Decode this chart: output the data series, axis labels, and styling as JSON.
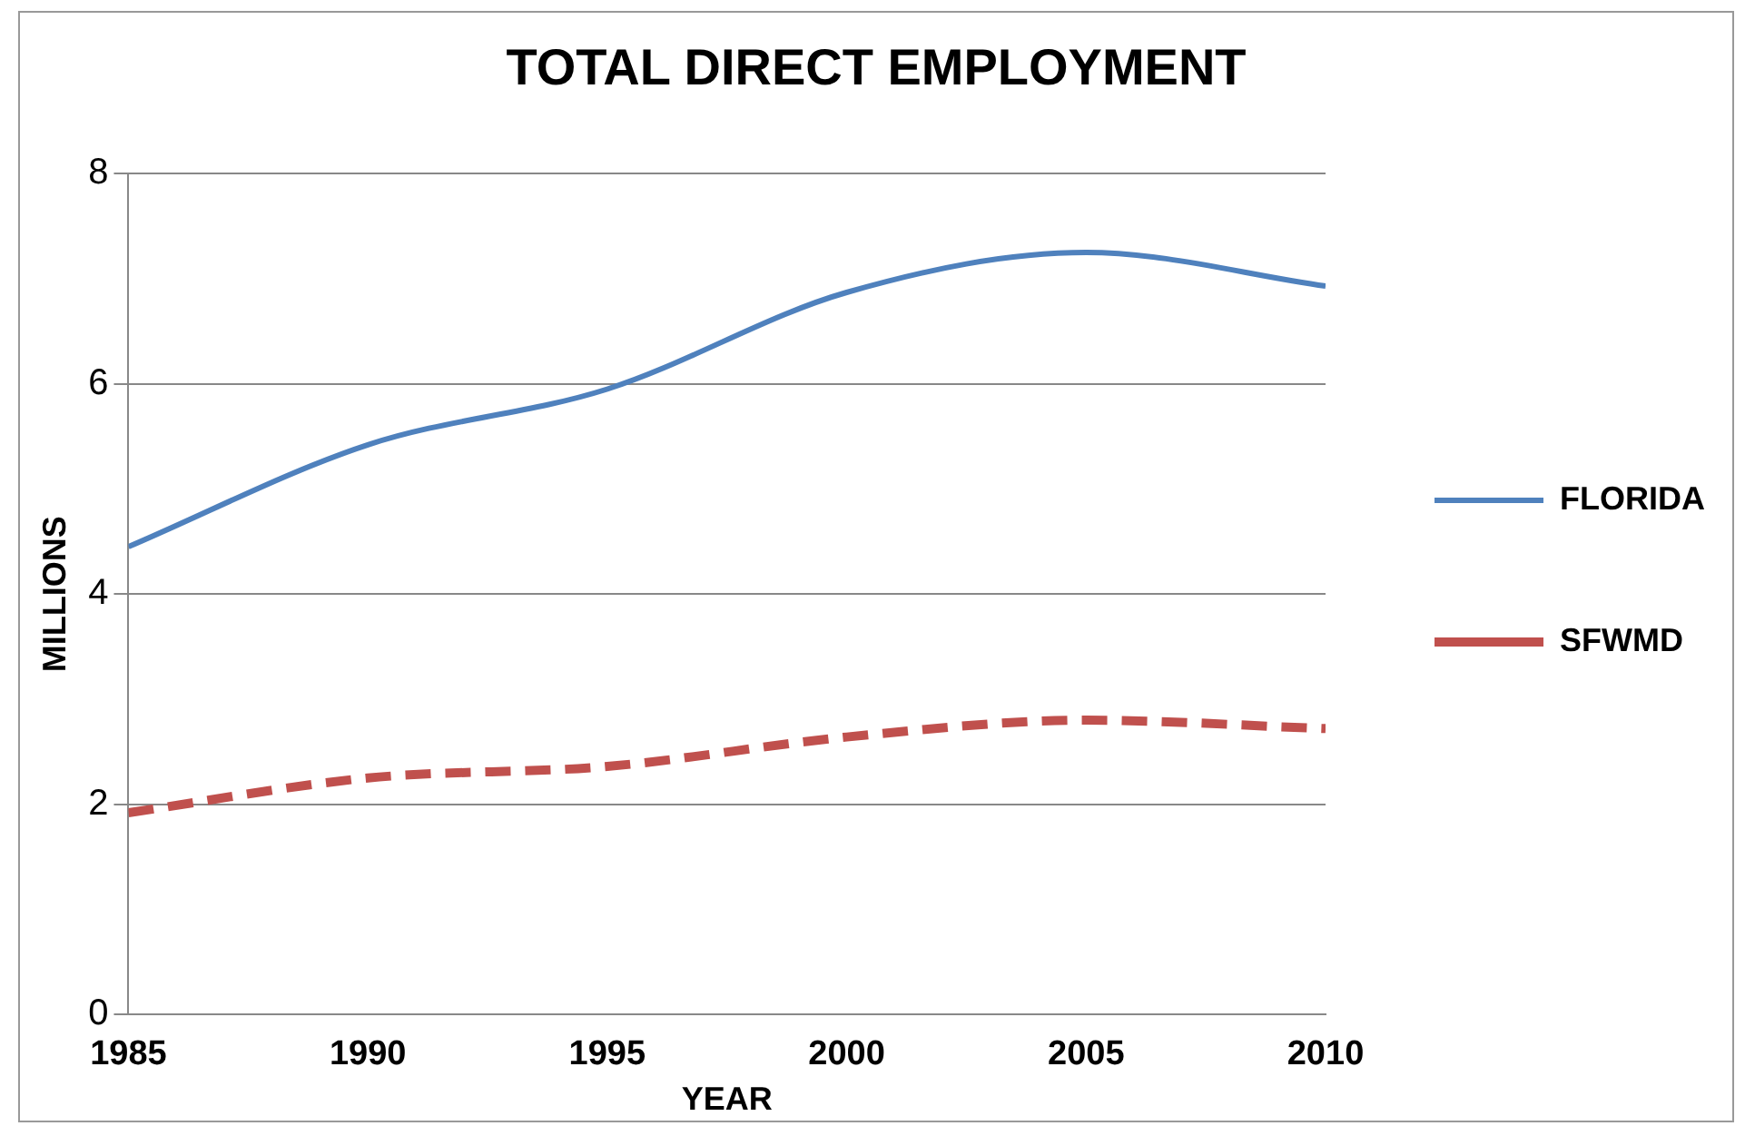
{
  "chart_data": {
    "type": "line",
    "title": "TOTAL DIRECT EMPLOYMENT",
    "xlabel": "YEAR",
    "ylabel": "MILLIONS",
    "x": [
      1985,
      1990,
      1995,
      2000,
      2005,
      2010
    ],
    "series": [
      {
        "name": "FLORIDA",
        "color": "#4f81bd",
        "line_style": "solid",
        "values": [
          4.45,
          5.42,
          5.95,
          6.87,
          7.25,
          6.93
        ]
      },
      {
        "name": "SFWMD",
        "color": "#c0504d",
        "line_style": "dashed",
        "values": [
          1.92,
          2.25,
          2.36,
          2.64,
          2.8,
          2.72
        ]
      }
    ],
    "xlim": [
      1985,
      2010
    ],
    "xticks": [
      1985,
      1990,
      1995,
      2000,
      2005,
      2010
    ],
    "ylim": [
      0,
      8
    ],
    "yticks": [
      0,
      2,
      4,
      6,
      8
    ],
    "grid": "y",
    "legend": "right",
    "marker": "none"
  }
}
